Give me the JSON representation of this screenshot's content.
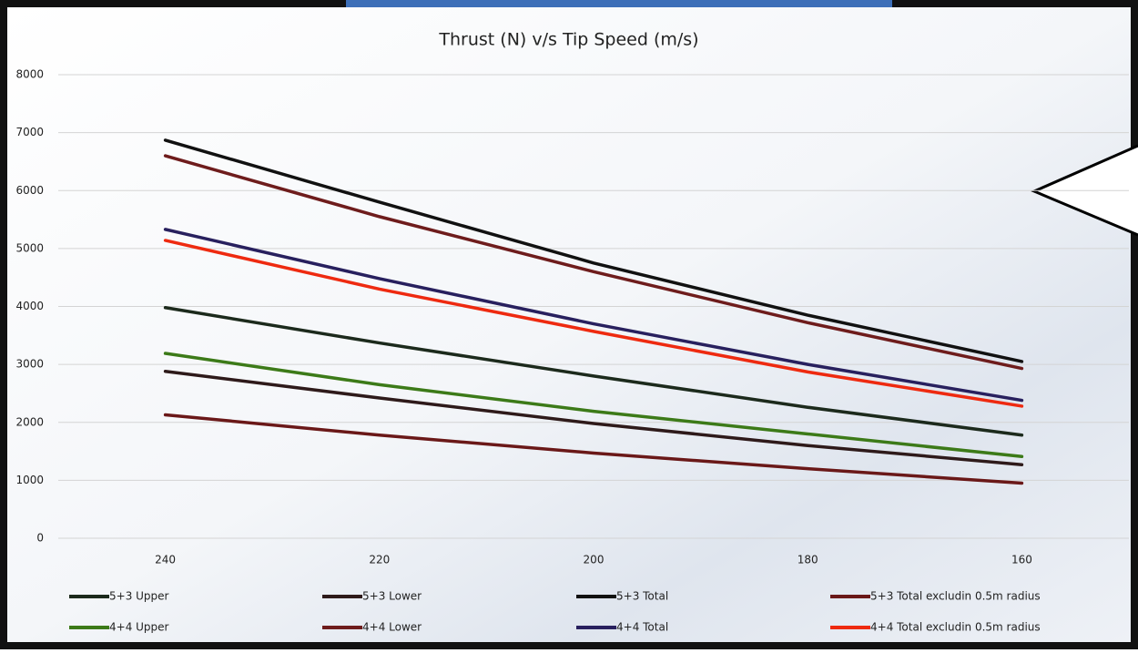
{
  "chart_data": {
    "type": "line",
    "title": "Thrust (N) v/s Tip Speed (m/s)",
    "categories": [
      "240",
      "220",
      "200",
      "180",
      "160"
    ],
    "ylim": [
      0,
      8000
    ],
    "yticks": [
      0,
      1000,
      2000,
      3000,
      4000,
      5000,
      6000,
      7000,
      8000
    ],
    "grid": true,
    "legend": "bottom",
    "series": [
      {
        "name": "5+3 Upper",
        "color": "#1c2a1c",
        "values": [
          3980,
          3370,
          2800,
          2260,
          1780
        ]
      },
      {
        "name": "5+3 Lower",
        "color": "#2e1a1a",
        "values": [
          2880,
          2420,
          1980,
          1600,
          1270
        ]
      },
      {
        "name": "5+3 Total",
        "color": "#111111",
        "values": [
          6870,
          5800,
          4750,
          3850,
          3050
        ]
      },
      {
        "name": "5+3 Total excludin 0.5m radius",
        "color": "#6a1818",
        "values": [
          2130,
          1780,
          1470,
          1200,
          950
        ]
      },
      {
        "name": "4+4 Upper",
        "color": "#3c7a18",
        "values": [
          3190,
          2650,
          2190,
          1800,
          1410
        ]
      },
      {
        "name": "4+4 Lower",
        "color": "#6e1c1c",
        "values": [
          6600,
          5550,
          4600,
          3720,
          2930
        ]
      },
      {
        "name": "4+4 Total",
        "color": "#28205e",
        "values": [
          5330,
          4480,
          3700,
          3000,
          2380
        ]
      },
      {
        "name": "4+4 Total excludin 0.5m radius",
        "color": "#ee2a10",
        "values": [
          5140,
          4300,
          3570,
          2870,
          2280
        ]
      }
    ]
  }
}
